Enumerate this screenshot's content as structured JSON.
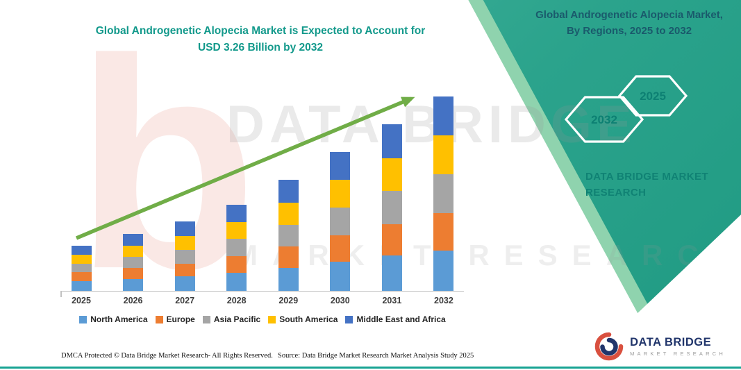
{
  "header": {
    "title_line1": "Global Androgenetic Alopecia Market is Expected to Account for",
    "title_line2": "USD 3.26 Billion by 2032"
  },
  "side_panel": {
    "title": "Global Androgenetic Alopecia Market, By Regions, 2025 to 2032",
    "hexagons": [
      {
        "label": "2032"
      },
      {
        "label": "2025"
      }
    ],
    "year_color": "#0d8073",
    "brand_line1": "DATA BRIDGE MARKET",
    "brand_line2": "RESEARCH",
    "accent_color": "#2BA58F"
  },
  "watermark": {
    "ghost_letter": "b",
    "line1": "DATA BRIDGE",
    "line2": "MARKET RESEARCH"
  },
  "chart_data": {
    "type": "bar",
    "stacked": true,
    "title": "Global Androgenetic Alopecia Market is Expected to Account for USD 3.26 Billion by 2032",
    "categories": [
      "2025",
      "2026",
      "2027",
      "2028",
      "2029",
      "2030",
      "2031",
      "2032"
    ],
    "series": [
      {
        "name": "North America",
        "color": "#5B9BD5",
        "values": [
          0.16,
          0.2,
          0.24,
          0.3,
          0.39,
          0.49,
          0.59,
          0.68
        ]
      },
      {
        "name": "Europe",
        "color": "#ED7D31",
        "values": [
          0.15,
          0.18,
          0.22,
          0.28,
          0.35,
          0.44,
          0.53,
          0.62
        ]
      },
      {
        "name": "Asia Pacific",
        "color": "#A5A5A5",
        "values": [
          0.15,
          0.19,
          0.23,
          0.29,
          0.37,
          0.47,
          0.56,
          0.66
        ]
      },
      {
        "name": "South America",
        "color": "#FFC000",
        "values": [
          0.15,
          0.19,
          0.23,
          0.28,
          0.37,
          0.46,
          0.55,
          0.65
        ]
      },
      {
        "name": "Middle East and Africa",
        "color": "#4472C4",
        "values": [
          0.15,
          0.19,
          0.24,
          0.29,
          0.38,
          0.47,
          0.56,
          0.65
        ]
      }
    ],
    "totals": [
      0.76,
      0.95,
      1.16,
      1.44,
      1.86,
      2.33,
      2.79,
      3.26
    ],
    "ylim": [
      0,
      3.3
    ],
    "grid": false,
    "legend_position": "bottom",
    "trend_arrow": true,
    "trend_arrow_color": "#70AD47"
  },
  "footer": {
    "dmca_text": "DMCA Protected © Data Bridge Market Research-  All Rights Reserved.",
    "source_text": "Source: Data Bridge Market Research  Market Analysis Study 2025"
  },
  "logo": {
    "name": "DATA BRIDGE",
    "tagline": "MARKET RESEARCH"
  }
}
